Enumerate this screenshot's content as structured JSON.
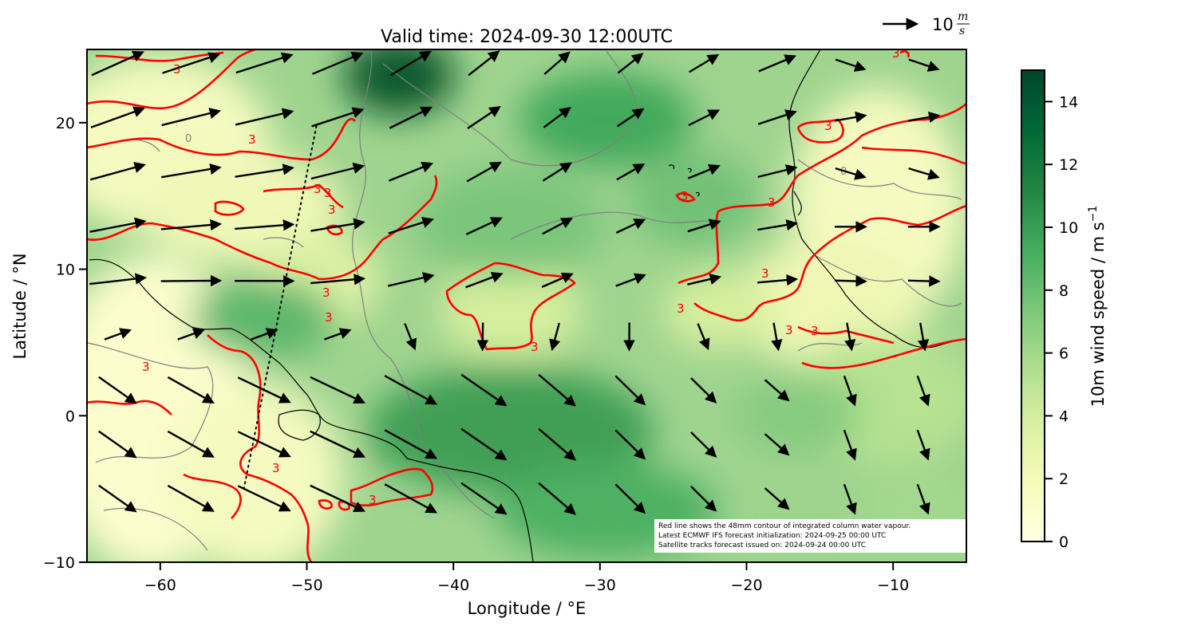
{
  "title": "Valid time: 2024-09-30 12:00UTC",
  "quiver_key": {
    "value": "10",
    "unit_num": "m",
    "unit_den": "s"
  },
  "x_axis": {
    "label": "Longitude / °E",
    "ticks": [
      "−60",
      "−50",
      "−40",
      "−30",
      "−20",
      "−10"
    ],
    "tick_values": [
      -60,
      -50,
      -40,
      -30,
      -20,
      -10
    ],
    "range": [
      -65,
      -5
    ]
  },
  "y_axis": {
    "label": "Latitude / °N",
    "ticks": [
      "20",
      "10",
      "0",
      "−10"
    ],
    "tick_values": [
      20,
      10,
      0,
      -10
    ],
    "range": [
      -10,
      25
    ]
  },
  "colorbar": {
    "label": "10m wind speed / m s",
    "label_sup": "−1",
    "ticks": [
      "0",
      "2",
      "4",
      "6",
      "8",
      "10",
      "12",
      "14"
    ],
    "tick_values": [
      0,
      2,
      4,
      6,
      8,
      10,
      12,
      14
    ],
    "range": [
      0,
      15
    ],
    "colormap": "YlGn",
    "colors": [
      "#ffffe5",
      "#f7fcb9",
      "#d9f0a3",
      "#addd8e",
      "#78c679",
      "#41ab5d",
      "#238443",
      "#006837",
      "#004529"
    ]
  },
  "note": {
    "line1": "Red line shows the 48mm contour of integrated column water vapour.",
    "line2": "Latest ECMWF IFS forecast initialization: 2024-09-25 00:00 UTC",
    "line3": "Satellite tracks forecast issued on: 2024-09-24 00:00 UTC"
  },
  "contour_label": "3",
  "gray_contour_label": "0",
  "colors": {
    "moisture_contour": "#ff0000",
    "coastline": "#000000",
    "gray_contour": "#808080",
    "arrow": "#000000",
    "track": "#000000"
  },
  "chart_data": {
    "type": "heatmap",
    "title": "Valid time: 2024-09-30 12:00UTC",
    "xlabel": "Longitude / °E",
    "ylabel": "Latitude / °N",
    "xlim": [
      -65,
      -5
    ],
    "ylim": [
      -10,
      25
    ],
    "colorbar_range": [
      0,
      15
    ],
    "wind_speed_maxima": [
      {
        "lon": -43.5,
        "lat": 23.0,
        "speed": 14
      },
      {
        "lon": -28.5,
        "lat": 19.0,
        "speed": 11
      },
      {
        "lon": -37.0,
        "lat": -3.5,
        "speed": 11
      },
      {
        "lon": -55.0,
        "lat": 6.5,
        "speed": 9
      }
    ],
    "satellite_track": {
      "start": [
        -54.3,
        -5.0
      ],
      "end": [
        -49.3,
        20.0
      ]
    }
  }
}
